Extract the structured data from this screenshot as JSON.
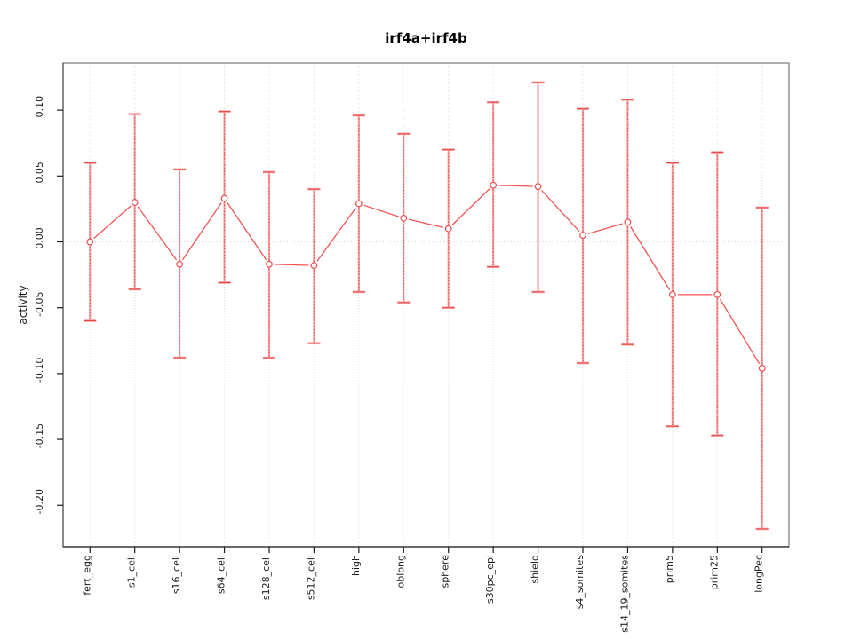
{
  "chart_data": {
    "type": "line",
    "title": "irf4a+irf4b",
    "xlabel": "",
    "ylabel": "activity",
    "legend": "none",
    "grid": "vertical-dotted-per-category-plus-zero-line",
    "categories": [
      "fert_egg",
      "s1_cell",
      "s16_cell",
      "s64_cell",
      "s128_cell",
      "s512_cell",
      "high",
      "oblong",
      "sphere",
      "s30pc_epi",
      "shield",
      "s4_somites",
      "s14_19_somites",
      "prim5",
      "prim25",
      "longPec"
    ],
    "series": [
      {
        "name": "activity",
        "values": [
          0.0,
          0.03,
          -0.017,
          0.033,
          -0.017,
          -0.018,
          0.029,
          0.018,
          0.01,
          0.043,
          0.042,
          0.005,
          0.015,
          -0.04,
          -0.04,
          -0.096
        ],
        "upper": [
          0.06,
          0.097,
          0.055,
          0.099,
          0.053,
          0.04,
          0.096,
          0.082,
          0.07,
          0.106,
          0.121,
          0.101,
          0.108,
          0.06,
          0.068,
          0.026
        ],
        "lower": [
          -0.06,
          -0.036,
          -0.088,
          -0.031,
          -0.088,
          -0.077,
          -0.038,
          -0.046,
          -0.05,
          -0.019,
          -0.038,
          -0.092,
          -0.078,
          -0.14,
          -0.147,
          -0.218
        ]
      }
    ],
    "yticks": [
      {
        "value": 0.1,
        "label": "0.10"
      },
      {
        "value": 0.05,
        "label": "0.05"
      },
      {
        "value": 0.0,
        "label": "0.00"
      },
      {
        "value": -0.05,
        "label": "-0.05"
      },
      {
        "value": -0.1,
        "label": "-0.10"
      },
      {
        "value": -0.15,
        "label": "-0.15"
      },
      {
        "value": -0.2,
        "label": "-0.20"
      }
    ],
    "ylim": [
      -0.2315,
      0.1358
    ],
    "xlim": [
      0.4,
      16.6
    ],
    "colors": {
      "series_line": "#f25353",
      "marker_stroke": "#ef4b4b",
      "marker_fill": "#ffffff",
      "errorbar_light": "#f9a0a0",
      "errorbar_dark": "#e04848",
      "gridline": "#dcdcdc",
      "zero_line": "#d4d4d4",
      "box_border": "#8a8a8a",
      "axis_line": "#2a2a2a",
      "tick": "#1c1c1c",
      "background": "#ffffff"
    }
  }
}
